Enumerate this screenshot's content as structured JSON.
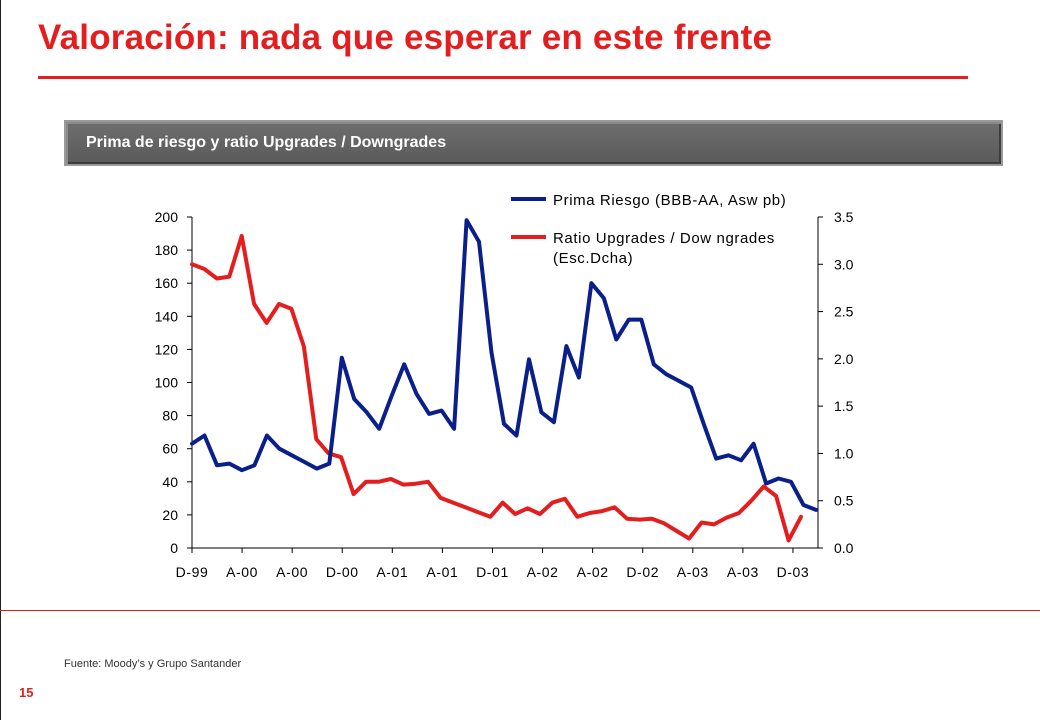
{
  "slide": {
    "title": "Valoración: nada que esperar en este frente",
    "banner": "Prima de riesgo y ratio Upgrades / Downgrades",
    "source": "Fuente: Moody’s  y Grupo Santander",
    "page_number": "15",
    "title_color": "#e41e1e"
  },
  "chart_data": {
    "type": "line",
    "x_tick_labels": [
      "D-99",
      "A-00",
      "A-00",
      "D-00",
      "A-01",
      "A-01",
      "D-01",
      "A-02",
      "A-02",
      "D-02",
      "A-03",
      "A-03",
      "D-03"
    ],
    "left_axis": {
      "ylim": [
        0,
        200
      ],
      "ticks": [
        "0",
        "20",
        "40",
        "60",
        "80",
        "100",
        "120",
        "140",
        "160",
        "180",
        "200"
      ]
    },
    "right_axis": {
      "ylim": [
        0,
        3.5
      ],
      "ticks": [
        "0.0",
        "0.5",
        "1.0",
        "1.5",
        "2.0",
        "2.5",
        "3.0",
        "3.5"
      ]
    },
    "grid": false,
    "legend_position": "top-right",
    "series": [
      {
        "name": "Prima Riesgo (BBB-AA, Asw  pb)",
        "axis": "left",
        "color": "#0a1f8a",
        "values": [
          63,
          68,
          50,
          51,
          47,
          50,
          68,
          60,
          56,
          52,
          48,
          51,
          115,
          90,
          82,
          72,
          92,
          111,
          93,
          81,
          83,
          72,
          198,
          185,
          118,
          75,
          68,
          114,
          82,
          76,
          122,
          103,
          160,
          151,
          126,
          138,
          138,
          111,
          105,
          101,
          97,
          75,
          54,
          56,
          53,
          63,
          39,
          42,
          40,
          26,
          23
        ]
      },
      {
        "name": "Ratio Upgrades / Dow ngrades\n(Esc.Dcha)",
        "axis": "right",
        "color": "#e41e1e",
        "values": [
          3.0,
          2.95,
          2.85,
          2.87,
          3.3,
          2.58,
          2.38,
          2.58,
          2.53,
          2.13,
          1.15,
          1.0,
          0.96,
          0.57,
          0.7,
          0.7,
          0.73,
          0.67,
          0.68,
          0.7,
          0.53,
          0.48,
          0.43,
          0.38,
          0.33,
          0.48,
          0.36,
          0.42,
          0.36,
          0.48,
          0.52,
          0.33,
          0.37,
          0.39,
          0.43,
          0.31,
          0.3,
          0.31,
          0.26,
          0.18,
          0.1,
          0.27,
          0.25,
          0.32,
          0.37,
          0.5,
          0.65,
          0.55,
          0.08,
          0.33
        ]
      }
    ]
  }
}
